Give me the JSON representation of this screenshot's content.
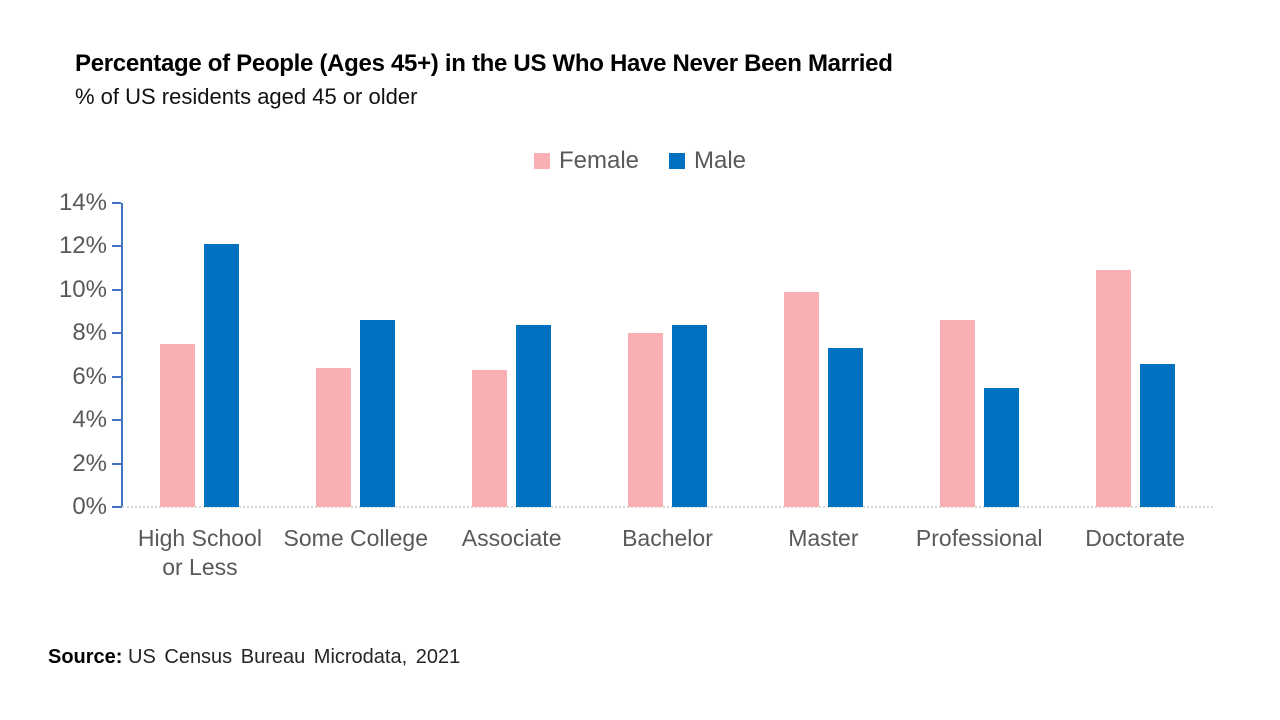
{
  "chart_data": {
    "type": "bar",
    "title": "Percentage of People (Ages 45+) in the US Who Have Never Been Married",
    "subtitle": "% of US residents aged 45 or older",
    "unit": "%",
    "categories": [
      "High School or Less",
      "Some College",
      "Associate",
      "Bachelor",
      "Master",
      "Professional",
      "Doctorate"
    ],
    "categories_display": [
      "High School\nor Less",
      "Some College",
      "Associate",
      "Bachelor",
      "Master",
      "Professional",
      "Doctorate"
    ],
    "series": [
      {
        "name": "Female",
        "color": "#FAAFB5",
        "values": [
          7.5,
          6.4,
          6.3,
          8.0,
          9.9,
          8.6,
          10.9
        ]
      },
      {
        "name": "Male",
        "color": "#0070C0",
        "values": [
          12.1,
          8.6,
          8.4,
          8.4,
          7.3,
          5.5,
          6.6
        ]
      }
    ],
    "ylim": [
      0,
      14
    ],
    "ytick_step": 2,
    "ytick_labels": [
      "0%",
      "2%",
      "4%",
      "6%",
      "8%",
      "10%",
      "12%",
      "14%"
    ],
    "xlabel": "",
    "ylabel": "",
    "grid": false,
    "legend_position": "top-center",
    "colors": {
      "axis": "#4472C4",
      "baseline_dotted": "#D9D9D9",
      "tick_label": "#595959",
      "category_label": "#595959",
      "legend_text": "#595959",
      "title_text": "#000000"
    }
  },
  "source": {
    "label": "Source:",
    "text": "US Census Bureau Microdata, 2021"
  }
}
